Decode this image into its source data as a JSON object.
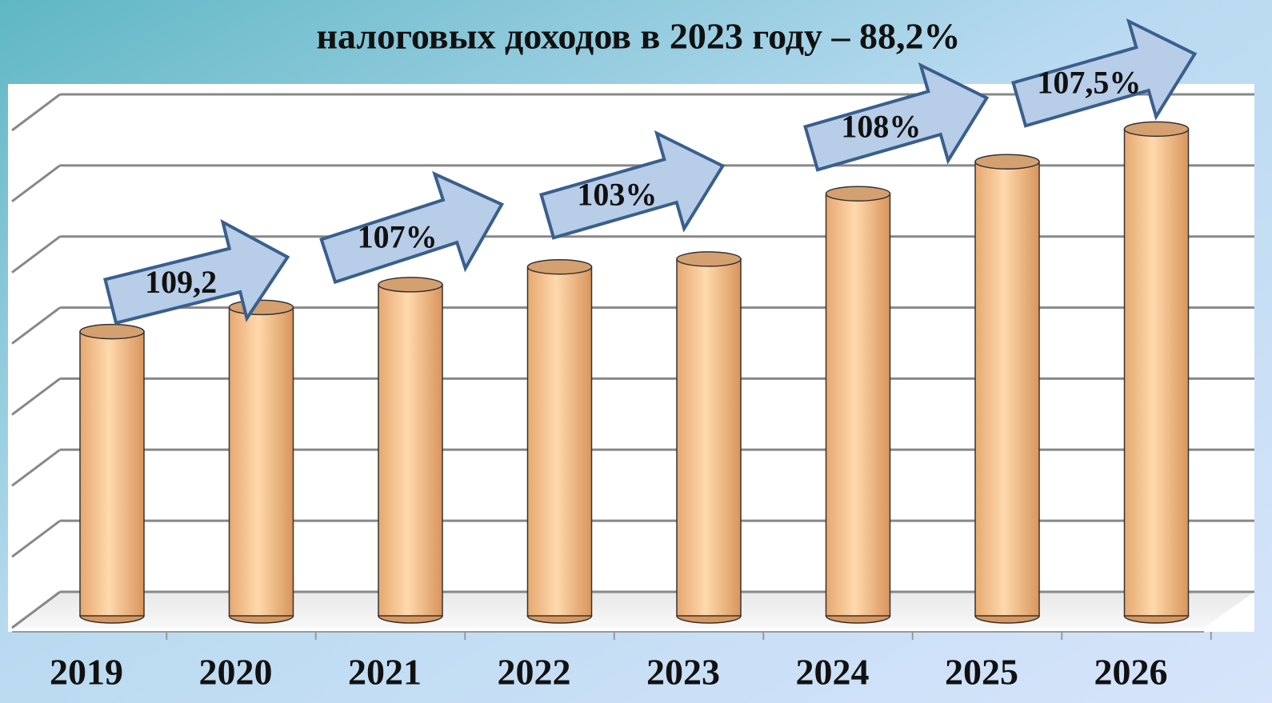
{
  "chart_data": {
    "type": "bar",
    "title": "налоговых доходов в 2023 году – 88,2%",
    "categories": [
      "2019",
      "2020",
      "2021",
      "2022",
      "2023",
      "2024",
      "2025",
      "2026"
    ],
    "values": [
      4.0,
      4.34,
      4.66,
      4.91,
      5.02,
      5.94,
      6.39,
      6.85
    ],
    "color": "#f5c08c",
    "ylim": [
      0,
      7
    ],
    "yticks": [
      0,
      1,
      2,
      3,
      4,
      5,
      6,
      7
    ],
    "grid": true,
    "annotations": [
      "109,2",
      "107%",
      "103%",
      "108%",
      "107,5%"
    ]
  }
}
